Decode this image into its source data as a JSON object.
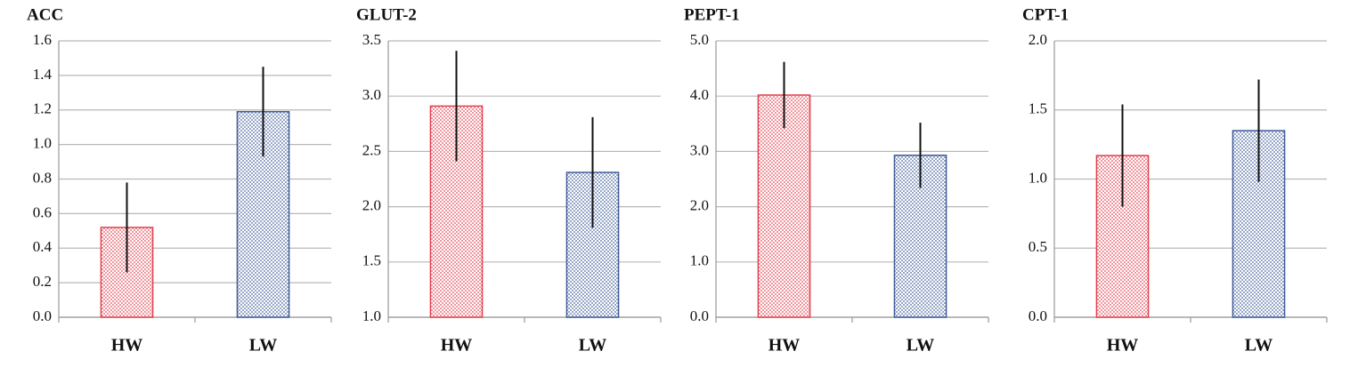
{
  "chart_data": [
    {
      "type": "bar",
      "title": "ACC",
      "categories": [
        "HW",
        "LW"
      ],
      "values": [
        0.52,
        1.19
      ],
      "errors": [
        0.26,
        0.26
      ],
      "colors": [
        "#e0404e",
        "#3f5c98"
      ],
      "ylim": [
        0,
        1.6
      ],
      "yticks": [
        {
          "value": 0,
          "label": "0.0"
        },
        0.2,
        0.4,
        0.6,
        0.8,
        {
          "value": 1,
          "label": "1.0"
        },
        1.2,
        1.4,
        1.6
      ],
      "grid": true
    },
    {
      "type": "bar",
      "title": "GLUT-2",
      "categories": [
        "HW",
        "LW"
      ],
      "values": [
        2.91,
        2.31
      ],
      "errors": [
        0.5,
        0.5
      ],
      "colors": [
        "#e0404e",
        "#3f5c98"
      ],
      "ylim": [
        1,
        3.5
      ],
      "yticks": [
        {
          "value": 1,
          "label": "1.0"
        },
        1.5,
        {
          "value": 2,
          "label": "2.0"
        },
        2.5,
        {
          "value": 3,
          "label": "3.0"
        },
        3.5
      ],
      "grid": true
    },
    {
      "type": "bar",
      "title": "PEPT-1",
      "categories": [
        "HW",
        "LW"
      ],
      "values": [
        4.02,
        2.93
      ],
      "errors": [
        0.6,
        0.59
      ],
      "colors": [
        "#e0404e",
        "#3f5c98"
      ],
      "ylim": [
        0,
        5
      ],
      "yticks": [
        {
          "value": 0,
          "label": "0.0"
        },
        {
          "value": 1,
          "label": "1.0"
        },
        {
          "value": 2,
          "label": "2.0"
        },
        {
          "value": 3,
          "label": "3.0"
        },
        {
          "value": 4,
          "label": "4.0"
        },
        {
          "value": 5,
          "label": "5.0"
        }
      ],
      "grid": true
    },
    {
      "type": "bar",
      "title": "CPT-1",
      "categories": [
        "HW",
        "LW"
      ],
      "values": [
        1.17,
        1.35
      ],
      "errors": [
        0.37,
        0.37
      ],
      "colors": [
        "#e0404e",
        "#3f5c98"
      ],
      "ylim": [
        0,
        2
      ],
      "yticks": [
        {
          "value": 0,
          "label": "0.0"
        },
        0.5,
        {
          "value": 1,
          "label": "1.0"
        },
        1.5,
        {
          "value": 2,
          "label": "2.0"
        }
      ],
      "grid": true
    }
  ]
}
